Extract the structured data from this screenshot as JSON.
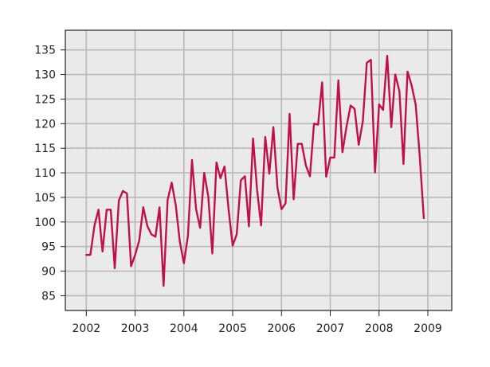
{
  "chart_data": {
    "type": "line",
    "title": "",
    "xlabel": "",
    "ylabel": "",
    "xlim": [
      2001.57,
      2009.49
    ],
    "ylim": [
      82,
      139
    ],
    "grid": true,
    "x_ticks": [
      2002,
      2003,
      2004,
      2005,
      2006,
      2007,
      2008,
      2009
    ],
    "x_tick_labels": [
      "2002",
      "2003",
      "2004",
      "2005",
      "2006",
      "2007",
      "2008",
      "2009"
    ],
    "y_ticks": [
      85,
      90,
      95,
      100,
      105,
      110,
      115,
      120,
      125,
      130,
      135
    ],
    "y_tick_labels": [
      "85",
      "90",
      "95",
      "100",
      "105",
      "110",
      "115",
      "120",
      "125",
      "130",
      "135"
    ],
    "series": [
      {
        "color": "#c0104a",
        "x": [
          2002.0,
          2002.083,
          2002.167,
          2002.25,
          2002.333,
          2002.417,
          2002.5,
          2002.583,
          2002.667,
          2002.75,
          2002.833,
          2002.917,
          2003.0,
          2003.083,
          2003.167,
          2003.25,
          2003.333,
          2003.417,
          2003.5,
          2003.583,
          2003.667,
          2003.75,
          2003.833,
          2003.917,
          2004.0,
          2004.083,
          2004.167,
          2004.25,
          2004.333,
          2004.417,
          2004.5,
          2004.583,
          2004.667,
          2004.75,
          2004.833,
          2004.917,
          2005.0,
          2005.083,
          2005.167,
          2005.25,
          2005.333,
          2005.417,
          2005.5,
          2005.583,
          2005.667,
          2005.75,
          2005.833,
          2005.917,
          2006.0,
          2006.083,
          2006.167,
          2006.25,
          2006.333,
          2006.417,
          2006.5,
          2006.583,
          2006.667,
          2006.75,
          2006.833,
          2006.917,
          2007.0,
          2007.083,
          2007.167,
          2007.25,
          2007.333,
          2007.417,
          2007.5,
          2007.583,
          2007.667,
          2007.75,
          2007.833,
          2007.917,
          2008.0,
          2008.083,
          2008.167,
          2008.25,
          2008.333,
          2008.417,
          2008.5,
          2008.583,
          2008.667,
          2008.75,
          2008.833,
          2008.917
        ],
        "values": [
          93.3,
          93.3,
          99.3,
          102.5,
          94.0,
          102.5,
          102.5,
          90.6,
          104.4,
          106.3,
          105.8,
          91.0,
          93.3,
          96.2,
          103.0,
          99.2,
          97.5,
          97.0,
          103.0,
          87.0,
          104.5,
          108.0,
          103.4,
          96.0,
          91.6,
          97.2,
          112.6,
          102.6,
          98.8,
          110.0,
          105.2,
          93.6,
          112.1,
          108.9,
          111.3,
          102.4,
          95.2,
          97.5,
          108.5,
          109.3,
          99.1,
          117.0,
          106.5,
          99.3,
          117.3,
          109.8,
          119.3,
          107.0,
          102.6,
          103.8,
          122.0,
          104.6,
          115.9,
          115.9,
          111.5,
          109.3,
          120.0,
          119.8,
          128.4,
          109.2,
          113.1,
          113.1,
          128.8,
          114.2,
          119.4,
          123.7,
          123.0,
          115.7,
          120.5,
          132.4,
          133.0,
          110.1,
          123.9,
          122.8,
          133.8,
          119.3,
          130.0,
          126.6,
          111.8,
          130.6,
          127.8,
          123.9,
          113.4,
          100.8
        ]
      }
    ]
  }
}
